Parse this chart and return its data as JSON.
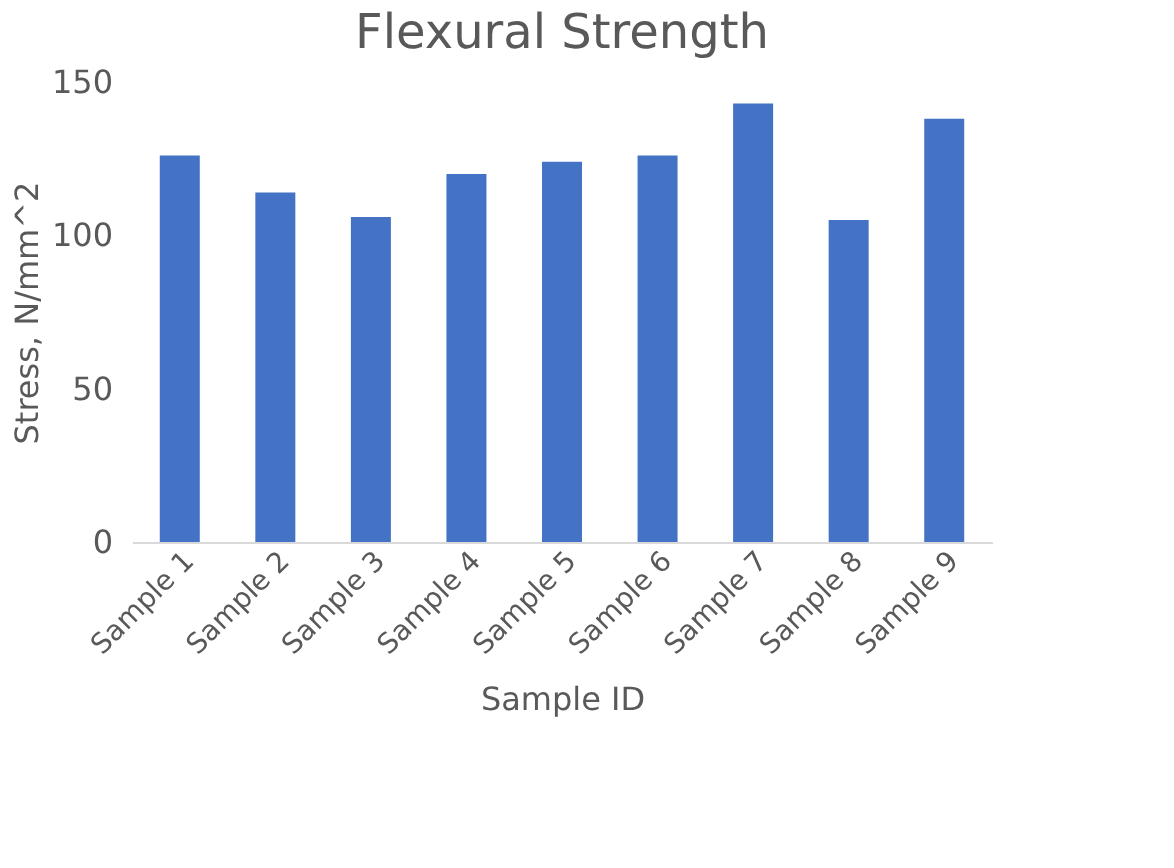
{
  "chart_data": {
    "type": "bar",
    "title": "Flexural Strength",
    "xlabel": "Sample ID",
    "ylabel": "Stress, N/mm^2",
    "categories": [
      "Sample 1",
      "Sample 2",
      "Sample 3",
      "Sample 4",
      "Sample 5",
      "Sample 6",
      "Sample 7",
      "Sample 8",
      "Sample 9"
    ],
    "values": [
      126,
      114,
      106,
      120,
      124,
      126,
      143,
      105,
      138
    ],
    "color": "#4472c4",
    "ylim": [
      0,
      150
    ],
    "yticks": [
      0,
      50,
      100,
      150
    ],
    "grid": false
  }
}
